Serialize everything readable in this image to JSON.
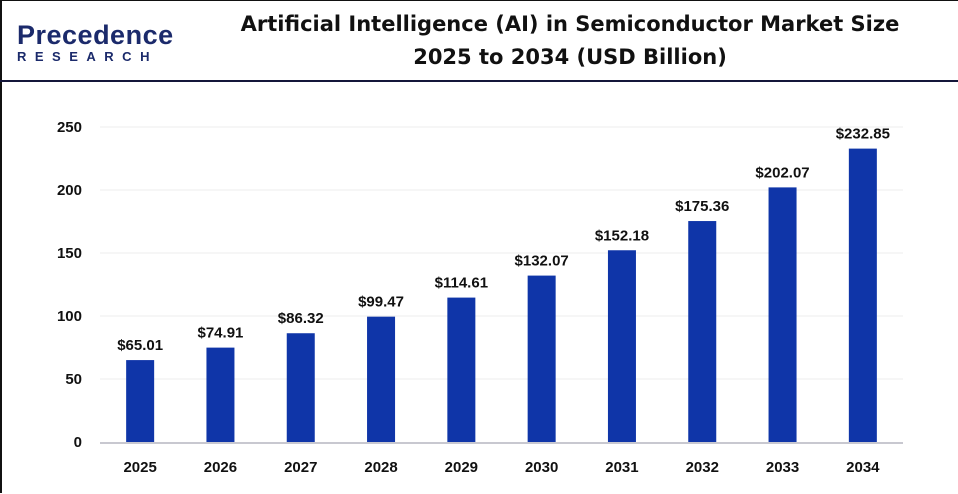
{
  "logo": {
    "line1": "Precedence",
    "line2": "RESEARCH"
  },
  "chart_data": {
    "type": "bar",
    "title": "Artificial Intelligence (AI) in Semiconductor Market Size 2025 to 2034 (USD Billion)",
    "title_lines": [
      "Artificial Intelligence (AI) in Semiconductor Market Size",
      "2025 to 2034 (USD Billion)"
    ],
    "categories": [
      "2025",
      "2026",
      "2027",
      "2028",
      "2029",
      "2030",
      "2031",
      "2032",
      "2033",
      "2034"
    ],
    "values": [
      65.01,
      74.91,
      86.32,
      99.47,
      114.61,
      132.07,
      152.18,
      175.36,
      202.07,
      232.85
    ],
    "data_labels": [
      "$65.01",
      "$74.91",
      "$86.32",
      "$99.47",
      "$114.61",
      "$132.07",
      "$152.18",
      "$175.36",
      "$202.07",
      "$232.85"
    ],
    "xlabel": "",
    "ylabel": "",
    "ylim": [
      0,
      250
    ],
    "yticks": [
      0,
      50,
      100,
      150,
      200,
      250
    ],
    "grid": true,
    "bar_color": "#0f35a8"
  }
}
